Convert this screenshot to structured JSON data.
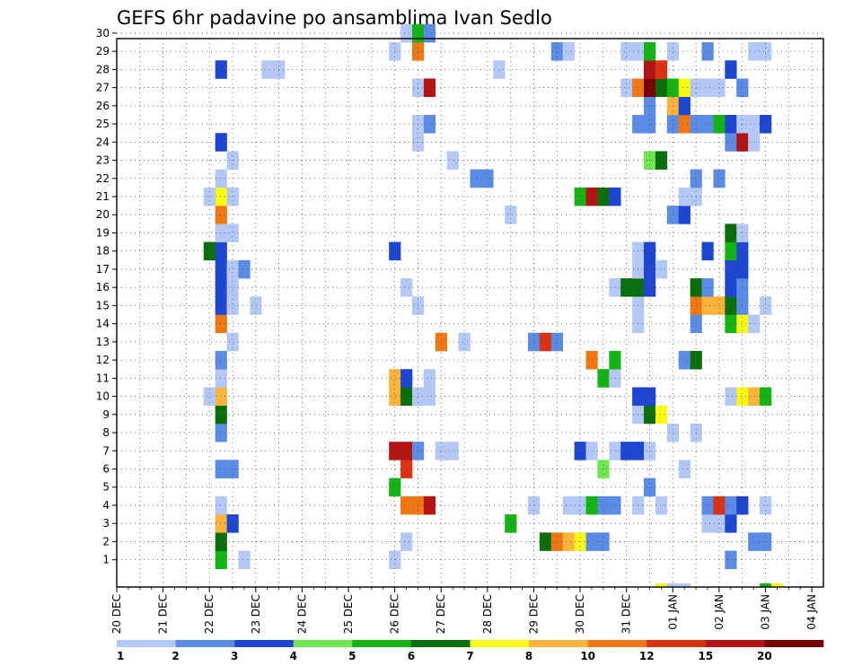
{
  "chart_data": {
    "type": "heatmap",
    "title": "GEFS 6hr padavine po ansamblima Ivan Sedlo",
    "xlabel": "",
    "ylabel": "",
    "x_start_hour": 0,
    "x_end_hour": 366,
    "x_ticks": [
      "20 DEC",
      "21 DEC",
      "22 DEC",
      "23 DEC",
      "24 DEC",
      "25 DEC",
      "26 DEC",
      "27 DEC",
      "28 DEC",
      "29 DEC",
      "30 DEC",
      "31 DEC",
      "01 JAN",
      "02 JAN",
      "03 JAN",
      "04 JAN"
    ],
    "y_ticks": [
      1,
      2,
      3,
      4,
      5,
      6,
      7,
      8,
      9,
      10,
      11,
      12,
      13,
      14,
      15,
      16,
      17,
      18,
      19,
      20,
      21,
      22,
      23,
      24,
      25,
      26,
      27,
      28,
      29,
      30
    ],
    "ylim": [
      0,
      30
    ],
    "grid": true,
    "colorbar": {
      "levels": [
        1,
        2,
        3,
        4,
        5,
        6,
        7,
        8,
        10,
        12,
        15,
        20
      ],
      "colors": [
        "#b4c8f5",
        "#5a8ce6",
        "#1e46d2",
        "#6ee650",
        "#14b414",
        "#0a6e0a",
        "#fafa14",
        "#fab43c",
        "#f07814",
        "#dc3214",
        "#b41414",
        "#780000"
      ]
    },
    "cells": [
      [
        54,
        1,
        5
      ],
      [
        54,
        2,
        6
      ],
      [
        54,
        3,
        8
      ],
      [
        54,
        4,
        1
      ],
      [
        54,
        6,
        2
      ],
      [
        54,
        8,
        2
      ],
      [
        54,
        9,
        6
      ],
      [
        54,
        10,
        8
      ],
      [
        54,
        11,
        1
      ],
      [
        54,
        12,
        2
      ],
      [
        54,
        14,
        9
      ],
      [
        54,
        15,
        3
      ],
      [
        54,
        16,
        3
      ],
      [
        54,
        17,
        3
      ],
      [
        54,
        18,
        3
      ],
      [
        54,
        19,
        1
      ],
      [
        54,
        20,
        9
      ],
      [
        54,
        21,
        7
      ],
      [
        54,
        22,
        1
      ],
      [
        54,
        24,
        3
      ],
      [
        54,
        28,
        3
      ],
      [
        48,
        21,
        1
      ],
      [
        48,
        18,
        6
      ],
      [
        48,
        10,
        1
      ],
      [
        60,
        3,
        3
      ],
      [
        60,
        6,
        2
      ],
      [
        60,
        13,
        1
      ],
      [
        60,
        15,
        1
      ],
      [
        60,
        16,
        1
      ],
      [
        60,
        17,
        1
      ],
      [
        60,
        19,
        1
      ],
      [
        60,
        21,
        1
      ],
      [
        60,
        23,
        1
      ],
      [
        66,
        1,
        1
      ],
      [
        66,
        17,
        2
      ],
      [
        72,
        15,
        1
      ],
      [
        78,
        28,
        1
      ],
      [
        84,
        28,
        1
      ],
      [
        144,
        1,
        1
      ],
      [
        144,
        5,
        5
      ],
      [
        144,
        7,
        11
      ],
      [
        144,
        10,
        8
      ],
      [
        144,
        11,
        8
      ],
      [
        144,
        18,
        3
      ],
      [
        144,
        29,
        1
      ],
      [
        150,
        2,
        1
      ],
      [
        150,
        4,
        9
      ],
      [
        150,
        6,
        10
      ],
      [
        150,
        7,
        11
      ],
      [
        150,
        10,
        6
      ],
      [
        150,
        11,
        3
      ],
      [
        150,
        16,
        1
      ],
      [
        150,
        30,
        1
      ],
      [
        156,
        4,
        9
      ],
      [
        156,
        7,
        2
      ],
      [
        156,
        10,
        1
      ],
      [
        156,
        15,
        1
      ],
      [
        156,
        24,
        1
      ],
      [
        156,
        25,
        1
      ],
      [
        156,
        27,
        1
      ],
      [
        156,
        29,
        9
      ],
      [
        156,
        30,
        5
      ],
      [
        162,
        4,
        11
      ],
      [
        162,
        10,
        1
      ],
      [
        162,
        11,
        1
      ],
      [
        162,
        25,
        2
      ],
      [
        162,
        27,
        11
      ],
      [
        162,
        30,
        2
      ],
      [
        168,
        7,
        1
      ],
      [
        168,
        13,
        9
      ],
      [
        174,
        7,
        1
      ],
      [
        174,
        23,
        1
      ],
      [
        180,
        13,
        1
      ],
      [
        186,
        22,
        2
      ],
      [
        192,
        22,
        2
      ],
      [
        198,
        28,
        1
      ],
      [
        204,
        3,
        5
      ],
      [
        204,
        20,
        1
      ],
      [
        216,
        4,
        1
      ],
      [
        216,
        13,
        2
      ],
      [
        222,
        2,
        6
      ],
      [
        222,
        13,
        10
      ],
      [
        228,
        2,
        9
      ],
      [
        228,
        13,
        2
      ],
      [
        228,
        29,
        2
      ],
      [
        234,
        2,
        8
      ],
      [
        234,
        4,
        1
      ],
      [
        234,
        29,
        1
      ],
      [
        240,
        2,
        7
      ],
      [
        240,
        4,
        1
      ],
      [
        240,
        7,
        3
      ],
      [
        240,
        21,
        5
      ],
      [
        246,
        2,
        2
      ],
      [
        246,
        4,
        5
      ],
      [
        246,
        7,
        1
      ],
      [
        246,
        12,
        9
      ],
      [
        246,
        21,
        11
      ],
      [
        252,
        2,
        2
      ],
      [
        252,
        4,
        2
      ],
      [
        252,
        6,
        4
      ],
      [
        252,
        11,
        5
      ],
      [
        252,
        21,
        6
      ],
      [
        258,
        4,
        2
      ],
      [
        258,
        7,
        1
      ],
      [
        258,
        11,
        1
      ],
      [
        258,
        12,
        5
      ],
      [
        258,
        16,
        1
      ],
      [
        258,
        21,
        3
      ],
      [
        264,
        7,
        3
      ],
      [
        264,
        16,
        6
      ],
      [
        264,
        27,
        1
      ],
      [
        264,
        29,
        1
      ],
      [
        270,
        4,
        1
      ],
      [
        270,
        7,
        3
      ],
      [
        270,
        9,
        1
      ],
      [
        270,
        10,
        3
      ],
      [
        270,
        14,
        1
      ],
      [
        270,
        15,
        1
      ],
      [
        270,
        16,
        6
      ],
      [
        270,
        17,
        1
      ],
      [
        270,
        18,
        1
      ],
      [
        270,
        25,
        2
      ],
      [
        270,
        27,
        9
      ],
      [
        270,
        29,
        1
      ],
      [
        276,
        5,
        2
      ],
      [
        276,
        7,
        1
      ],
      [
        276,
        9,
        6
      ],
      [
        276,
        10,
        3
      ],
      [
        276,
        16,
        3
      ],
      [
        276,
        17,
        3
      ],
      [
        276,
        18,
        3
      ],
      [
        276,
        23,
        4
      ],
      [
        276,
        25,
        2
      ],
      [
        276,
        26,
        2
      ],
      [
        276,
        27,
        12
      ],
      [
        276,
        28,
        11
      ],
      [
        276,
        29,
        5
      ],
      [
        282,
        4,
        1
      ],
      [
        282,
        9,
        7
      ],
      [
        282,
        17,
        1
      ],
      [
        282,
        23,
        6
      ],
      [
        282,
        27,
        6
      ],
      [
        282,
        28,
        10
      ],
      [
        288,
        8,
        1
      ],
      [
        288,
        20,
        2
      ],
      [
        288,
        25,
        2
      ],
      [
        288,
        26,
        8
      ],
      [
        288,
        27,
        5
      ],
      [
        288,
        29,
        1
      ],
      [
        294,
        6,
        1
      ],
      [
        294,
        12,
        2
      ],
      [
        294,
        20,
        3
      ],
      [
        294,
        21,
        1
      ],
      [
        294,
        25,
        9
      ],
      [
        294,
        26,
        3
      ],
      [
        294,
        27,
        7
      ],
      [
        300,
        8,
        1
      ],
      [
        300,
        12,
        6
      ],
      [
        300,
        14,
        2
      ],
      [
        300,
        15,
        9
      ],
      [
        300,
        16,
        6
      ],
      [
        300,
        21,
        1
      ],
      [
        300,
        22,
        2
      ],
      [
        300,
        25,
        2
      ],
      [
        300,
        27,
        1
      ],
      [
        306,
        3,
        1
      ],
      [
        306,
        4,
        2
      ],
      [
        306,
        15,
        8
      ],
      [
        306,
        16,
        2
      ],
      [
        306,
        18,
        3
      ],
      [
        306,
        25,
        2
      ],
      [
        306,
        27,
        1
      ],
      [
        306,
        29,
        2
      ],
      [
        312,
        3,
        1
      ],
      [
        312,
        4,
        10
      ],
      [
        312,
        15,
        8
      ],
      [
        312,
        22,
        2
      ],
      [
        312,
        25,
        5
      ],
      [
        312,
        27,
        1
      ],
      [
        318,
        1,
        2
      ],
      [
        318,
        3,
        3
      ],
      [
        318,
        4,
        2
      ],
      [
        318,
        10,
        1
      ],
      [
        318,
        14,
        5
      ],
      [
        318,
        15,
        6
      ],
      [
        318,
        16,
        3
      ],
      [
        318,
        17,
        3
      ],
      [
        318,
        18,
        5
      ],
      [
        318,
        19,
        6
      ],
      [
        318,
        24,
        2
      ],
      [
        318,
        25,
        3
      ],
      [
        318,
        28,
        3
      ],
      [
        324,
        4,
        3
      ],
      [
        324,
        10,
        7
      ],
      [
        324,
        14,
        7
      ],
      [
        324,
        15,
        2
      ],
      [
        324,
        16,
        2
      ],
      [
        324,
        17,
        3
      ],
      [
        324,
        18,
        3
      ],
      [
        324,
        19,
        1
      ],
      [
        324,
        24,
        11
      ],
      [
        324,
        25,
        1
      ],
      [
        324,
        27,
        2
      ],
      [
        330,
        2,
        2
      ],
      [
        330,
        10,
        8
      ],
      [
        330,
        14,
        1
      ],
      [
        330,
        24,
        1
      ],
      [
        330,
        25,
        1
      ],
      [
        330,
        29,
        1
      ],
      [
        336,
        2,
        2
      ],
      [
        336,
        4,
        1
      ],
      [
        336,
        10,
        5
      ],
      [
        336,
        15,
        1
      ],
      [
        336,
        25,
        3
      ],
      [
        336,
        29,
        1
      ]
    ],
    "zero_row_cells": [
      [
        282,
        7
      ],
      [
        288,
        1
      ],
      [
        294,
        1
      ],
      [
        336,
        5
      ],
      [
        342,
        7
      ]
    ]
  }
}
